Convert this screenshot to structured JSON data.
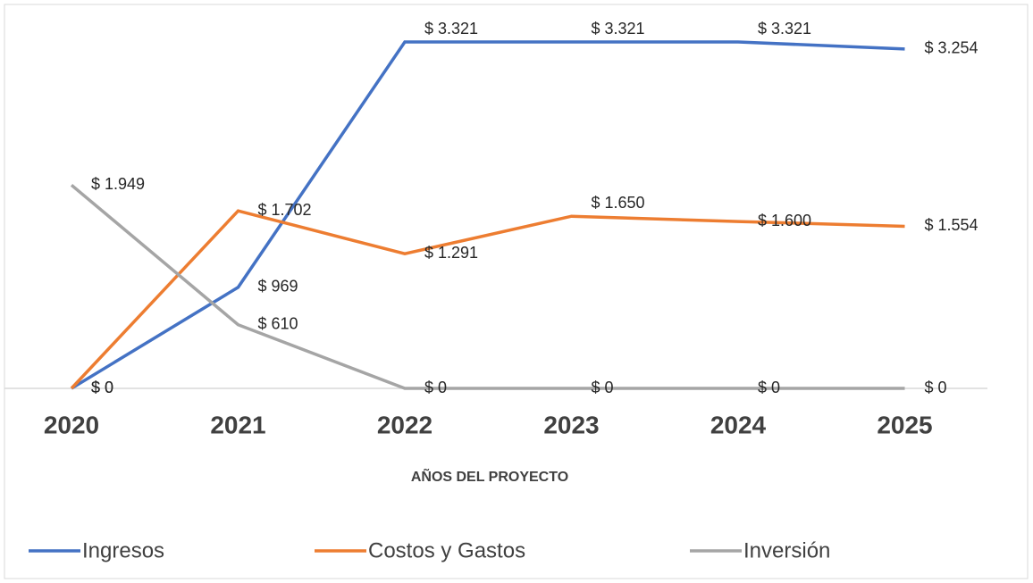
{
  "chart_data": {
    "type": "line",
    "x_label": "AÑOS DEL PROYECTO",
    "categories": [
      "2020",
      "2021",
      "2022",
      "2023",
      "2024",
      "2025"
    ],
    "series": [
      {
        "name": "Ingresos",
        "color": "#4472c4",
        "values": [
          0,
          969,
          3321,
          3321,
          3321,
          3254
        ],
        "value_labels": [
          "$ 0",
          "$ 969",
          "$ 3.321",
          "$ 3.321",
          "$ 3.321",
          "$ 3.254"
        ]
      },
      {
        "name": "Costos y Gastos",
        "color": "#ed7d31",
        "values": [
          0,
          1702,
          1291,
          1650,
          1600,
          1554
        ],
        "value_labels": [
          "$ 0",
          "$ 1.702",
          "$ 1.291",
          "$ 1.650",
          "$ 1.600",
          "$ 1.554"
        ]
      },
      {
        "name": "Inversión",
        "color": "#a5a5a5",
        "values": [
          1949,
          610,
          0,
          0,
          0,
          0
        ],
        "value_labels": [
          "$ 1.949",
          "$ 610",
          "$ 0",
          "$ 0",
          "$ 0",
          "$ 0"
        ]
      }
    ],
    "legend": "bottom"
  }
}
